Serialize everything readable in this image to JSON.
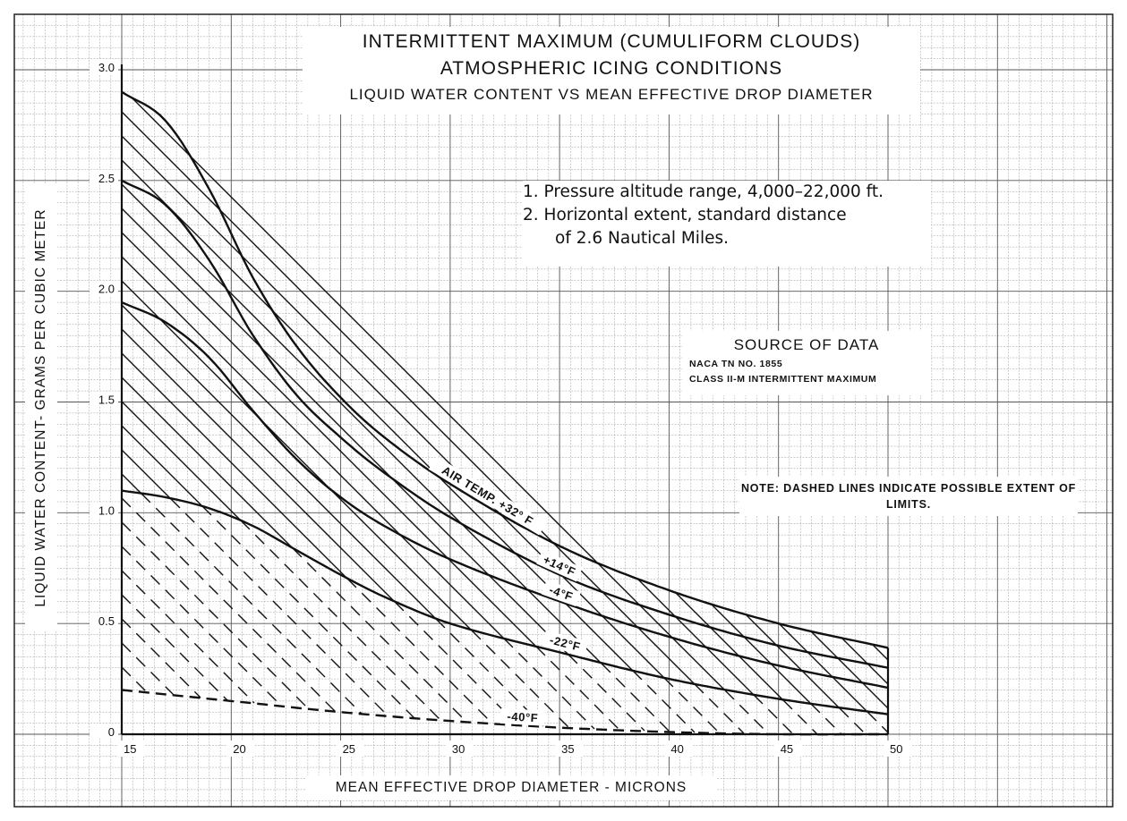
{
  "chart_data": {
    "type": "line",
    "title": "INTERMITTENT MAXIMUM (CUMULIFORM CLOUDS)",
    "title_line2": "ATMOSPHERIC ICING CONDITIONS",
    "subtitle": "LIQUID WATER CONTENT VS MEAN EFFECTIVE DROP DIAMETER",
    "xlabel": "MEAN EFFECTIVE DROP DIAMETER - MICRONS",
    "ylabel": "LIQUID WATER CONTENT- GRAMS PER CUBIC METER",
    "xlim": [
      15,
      50
    ],
    "ylim": [
      0,
      3.0
    ],
    "x_ticks": [
      15,
      20,
      25,
      30,
      35,
      40,
      45,
      50
    ],
    "y_ticks": [
      0,
      0.5,
      1.0,
      1.5,
      2.0,
      2.5,
      3.0
    ],
    "x_tick_labels": [
      "15",
      "20",
      "25",
      "30",
      "35",
      "40",
      "45",
      "50"
    ],
    "y_tick_labels": [
      "0",
      "0.5",
      "1.0",
      "1.5",
      "2.0",
      "2.5",
      "3.0"
    ],
    "grid": true,
    "series": [
      {
        "name": "AIR TEMP. +32° F",
        "label_text": "AIR TEMP. +32° F",
        "x": [
          15,
          17,
          19,
          21,
          23,
          25,
          27,
          30,
          35,
          40,
          45,
          50
        ],
        "y": [
          2.9,
          2.77,
          2.46,
          2.06,
          1.75,
          1.52,
          1.34,
          1.13,
          0.85,
          0.65,
          0.5,
          0.39
        ]
      },
      {
        "name": "+14° F",
        "label_text": "+14°F",
        "x": [
          15,
          17,
          19,
          21,
          23,
          25,
          27,
          30,
          35,
          40,
          45,
          50
        ],
        "y": [
          2.5,
          2.39,
          2.14,
          1.8,
          1.53,
          1.34,
          1.18,
          0.98,
          0.72,
          0.54,
          0.4,
          0.3
        ]
      },
      {
        "name": "-4° F",
        "label_text": "-4°F",
        "x": [
          15,
          17,
          19,
          21,
          23,
          25,
          27,
          30,
          35,
          40,
          45,
          50
        ],
        "y": [
          1.95,
          1.86,
          1.7,
          1.46,
          1.24,
          1.07,
          0.94,
          0.79,
          0.6,
          0.44,
          0.31,
          0.21
        ]
      },
      {
        "name": "-22° F",
        "label_text": "-22°F",
        "x": [
          15,
          17,
          19,
          21,
          23,
          25,
          27,
          30,
          35,
          40,
          45,
          50
        ],
        "y": [
          1.1,
          1.07,
          1.02,
          0.94,
          0.83,
          0.72,
          0.62,
          0.5,
          0.37,
          0.25,
          0.16,
          0.09
        ]
      },
      {
        "name": "-40° F",
        "label_text": "-40°F",
        "x": [
          15,
          20,
          25,
          30,
          35,
          40,
          45,
          50
        ],
        "y": [
          0.2,
          0.15,
          0.1,
          0.06,
          0.03,
          0.01,
          0.0,
          0.0
        ]
      }
    ],
    "dashed_region_note": "NOTE: DASHED LINES INDICATE POSSIBLE EXTENT OF LIMITS.",
    "notes": [
      "1.  Pressure altitude range,  4,000–22,000 ft.",
      "2.  Horizontal extent, standard distance",
      "of 2.6 Nautical Miles."
    ],
    "source": {
      "heading": "SOURCE OF DATA",
      "line1": "NACA TN NO. 1855",
      "line2": "CLASS II-M INTERMITTENT MAXIMUM"
    }
  }
}
